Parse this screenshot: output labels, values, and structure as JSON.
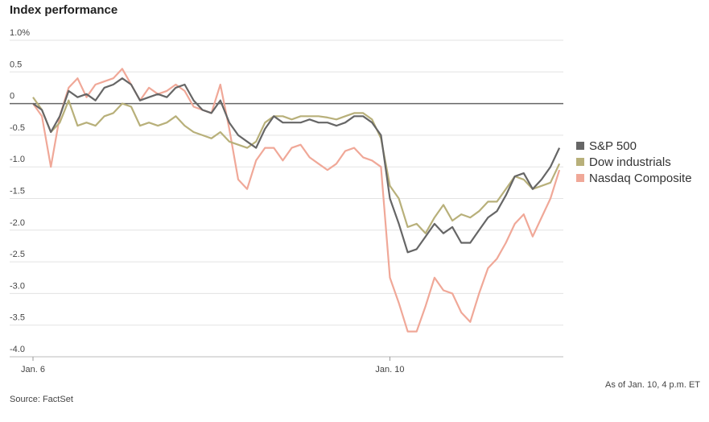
{
  "chart_data": {
    "type": "line",
    "title": "Index performance",
    "source": "Source: FactSet",
    "note": "As of Jan. 10, 4 p.m. ET",
    "categories": [
      "Jan. 6",
      null,
      null,
      null,
      null,
      null,
      null,
      null,
      null,
      null,
      null,
      null,
      null,
      null,
      null,
      null,
      null,
      null,
      null,
      null,
      null,
      null,
      null,
      null,
      null,
      null,
      null,
      null,
      null,
      null,
      null,
      null,
      null,
      null,
      null,
      null,
      null,
      null,
      null,
      null,
      "Jan. 10",
      null,
      null,
      null,
      null,
      null,
      null,
      null,
      null,
      null,
      null,
      null,
      null,
      null,
      null,
      null,
      null,
      null,
      null,
      null
    ],
    "ylim": [
      -4,
      1
    ],
    "yticks": [
      {
        "value": 1,
        "label": "1.0%"
      },
      0.5,
      0,
      -0.5,
      {
        "value": -1,
        "label": "-1.0"
      },
      -1.5,
      {
        "value": -2,
        "label": "-2.0"
      },
      -2.5,
      {
        "value": -3,
        "label": "-3.0"
      },
      -3.5,
      {
        "value": -4,
        "label": "-4.0"
      }
    ],
    "grid": true,
    "legend": "right",
    "series": [
      {
        "name": "S&P 500",
        "color": "#666666",
        "values": [
          0.0,
          -0.1,
          -0.45,
          -0.2,
          0.2,
          0.1,
          0.15,
          0.05,
          0.25,
          0.3,
          0.4,
          0.3,
          0.05,
          0.1,
          0.15,
          0.1,
          0.25,
          0.3,
          0.05,
          -0.1,
          -0.15,
          0.05,
          -0.3,
          -0.5,
          -0.6,
          -0.7,
          -0.4,
          -0.2,
          -0.3,
          -0.3,
          -0.3,
          -0.25,
          -0.3,
          -0.3,
          -0.35,
          -0.3,
          -0.2,
          -0.2,
          -0.3,
          -0.5,
          -1.5,
          -1.9,
          -2.35,
          -2.3,
          -2.1,
          -1.9,
          -2.05,
          -1.95,
          -2.2,
          -2.2,
          -2.0,
          -1.8,
          -1.7,
          -1.45,
          -1.15,
          -1.1,
          -1.35,
          -1.2,
          -1.0,
          -0.7
        ]
      },
      {
        "name": "Dow industrials",
        "color": "#b8b07a",
        "values": [
          0.1,
          -0.1,
          -0.45,
          -0.3,
          0.05,
          -0.35,
          -0.3,
          -0.35,
          -0.2,
          -0.15,
          0.0,
          -0.05,
          -0.35,
          -0.3,
          -0.35,
          -0.3,
          -0.2,
          -0.35,
          -0.45,
          -0.5,
          -0.55,
          -0.45,
          -0.6,
          -0.65,
          -0.7,
          -0.6,
          -0.3,
          -0.2,
          -0.2,
          -0.25,
          -0.2,
          -0.2,
          -0.2,
          -0.22,
          -0.25,
          -0.2,
          -0.15,
          -0.15,
          -0.25,
          -0.55,
          -1.3,
          -1.5,
          -1.95,
          -1.9,
          -2.05,
          -1.8,
          -1.6,
          -1.85,
          -1.75,
          -1.8,
          -1.7,
          -1.55,
          -1.55,
          -1.35,
          -1.15,
          -1.2,
          -1.35,
          -1.3,
          -1.25,
          -0.95
        ]
      },
      {
        "name": "Nasdaq Composite",
        "color": "#f0a898",
        "values": [
          0.0,
          -0.2,
          -1.0,
          -0.2,
          0.25,
          0.4,
          0.1,
          0.3,
          0.35,
          0.4,
          0.55,
          0.3,
          0.05,
          0.25,
          0.15,
          0.2,
          0.3,
          0.2,
          -0.05,
          -0.1,
          -0.15,
          0.3,
          -0.4,
          -1.2,
          -1.35,
          -0.9,
          -0.7,
          -0.7,
          -0.9,
          -0.7,
          -0.65,
          -0.85,
          -0.95,
          -1.05,
          -0.95,
          -0.75,
          -0.7,
          -0.85,
          -0.9,
          -1.0,
          -2.75,
          -3.15,
          -3.6,
          -3.6,
          -3.2,
          -2.75,
          -2.95,
          -3.0,
          -3.3,
          -3.45,
          -3.0,
          -2.6,
          -2.45,
          -2.2,
          -1.9,
          -1.75,
          -2.1,
          -1.8,
          -1.5,
          -1.05
        ]
      }
    ]
  }
}
